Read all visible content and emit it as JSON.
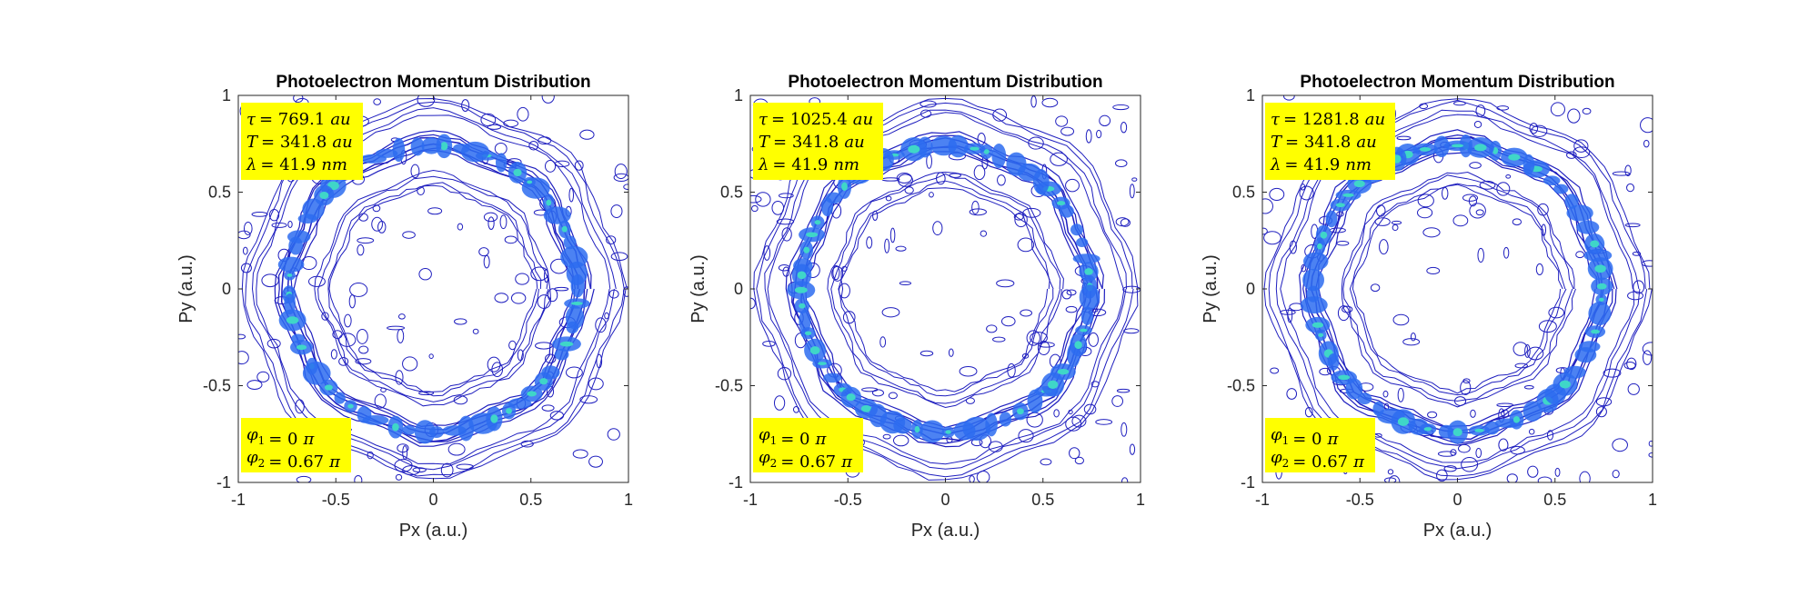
{
  "chart_data": [
    {
      "type": "contour",
      "title": "Photoelectron Momentum Distribution",
      "xlabel": "Px (a.u.)",
      "ylabel": "Py (a.u.)",
      "xlim": [
        -1,
        1
      ],
      "ylim": [
        -1,
        1
      ],
      "xticks": [
        -1,
        -0.5,
        0,
        0.5,
        1
      ],
      "yticks": [
        -1,
        -0.5,
        0,
        0.5,
        1
      ],
      "xtick_labels": [
        "-1",
        "-0.5",
        "0",
        "0.5",
        "1"
      ],
      "ytick_labels": [
        "-1",
        "-0.5",
        "0",
        "0.5",
        "1"
      ],
      "grid": false,
      "rings": [
        {
          "radius": 0.74,
          "intensity": "high"
        },
        {
          "radius": 0.55,
          "intensity": "medium"
        },
        {
          "radius": 0.92,
          "intensity": "low"
        }
      ],
      "annotations": {
        "top": [
          {
            "symbol": "τ",
            "value": "= 769.1",
            "unit": "au"
          },
          {
            "symbol": "T",
            "value": "= 341.8",
            "unit": "au"
          },
          {
            "symbol": "λ",
            "value": "= 41.9",
            "unit": "nm"
          }
        ],
        "bottom": [
          {
            "symbol": "φ",
            "sub": "1",
            "value": "= 0",
            "unit": "π"
          },
          {
            "symbol": "φ",
            "sub": "2",
            "value": "= 0.67",
            "unit": "π"
          }
        ]
      }
    },
    {
      "type": "contour",
      "title": "Photoelectron Momentum Distribution",
      "xlabel": "Px (a.u.)",
      "ylabel": "Py (a.u.)",
      "xlim": [
        -1,
        1
      ],
      "ylim": [
        -1,
        1
      ],
      "xticks": [
        -1,
        -0.5,
        0,
        0.5,
        1
      ],
      "yticks": [
        -1,
        -0.5,
        0,
        0.5,
        1
      ],
      "xtick_labels": [
        "-1",
        "-0.5",
        "0",
        "0.5",
        "1"
      ],
      "ytick_labels": [
        "-1",
        "-0.5",
        "0",
        "0.5",
        "1"
      ],
      "grid": false,
      "rings": [
        {
          "radius": 0.74,
          "intensity": "high"
        },
        {
          "radius": 0.55,
          "intensity": "medium"
        },
        {
          "radius": 0.92,
          "intensity": "low"
        }
      ],
      "annotations": {
        "top": [
          {
            "symbol": "τ",
            "value": "= 1025.4",
            "unit": "au"
          },
          {
            "symbol": "T",
            "value": "= 341.8",
            "unit": "au"
          },
          {
            "symbol": "λ",
            "value": "= 41.9",
            "unit": "nm"
          }
        ],
        "bottom": [
          {
            "symbol": "φ",
            "sub": "1",
            "value": "= 0",
            "unit": "π"
          },
          {
            "symbol": "φ",
            "sub": "2",
            "value": "= 0.67",
            "unit": "π"
          }
        ]
      }
    },
    {
      "type": "contour",
      "title": "Photoelectron Momentum Distribution",
      "xlabel": "Px (a.u.)",
      "ylabel": "Py (a.u.)",
      "xlim": [
        -1,
        1
      ],
      "ylim": [
        -1,
        1
      ],
      "xticks": [
        -1,
        -0.5,
        0,
        0.5,
        1
      ],
      "yticks": [
        -1,
        -0.5,
        0,
        0.5,
        1
      ],
      "xtick_labels": [
        "-1",
        "-0.5",
        "0",
        "0.5",
        "1"
      ],
      "ytick_labels": [
        "-1",
        "-0.5",
        "0",
        "0.5",
        "1"
      ],
      "grid": false,
      "rings": [
        {
          "radius": 0.74,
          "intensity": "high"
        },
        {
          "radius": 0.55,
          "intensity": "medium"
        },
        {
          "radius": 0.92,
          "intensity": "low"
        }
      ],
      "annotations": {
        "top": [
          {
            "symbol": "τ",
            "value": "= 1281.8",
            "unit": "au"
          },
          {
            "symbol": "T",
            "value": "= 341.8",
            "unit": "au"
          },
          {
            "symbol": "λ",
            "value": "= 41.9",
            "unit": "nm"
          }
        ],
        "bottom": [
          {
            "symbol": "φ",
            "sub": "1",
            "value": "= 0",
            "unit": "π"
          },
          {
            "symbol": "φ",
            "sub": "2",
            "value": "= 0.67",
            "unit": "π"
          }
        ]
      }
    }
  ],
  "colors": {
    "contour_outer": "#1f1fbf",
    "contour_mid": "#2d6cf0",
    "contour_hot": "#3fd6c8",
    "annotation_box": "#ffff00",
    "axis": "#262626"
  }
}
